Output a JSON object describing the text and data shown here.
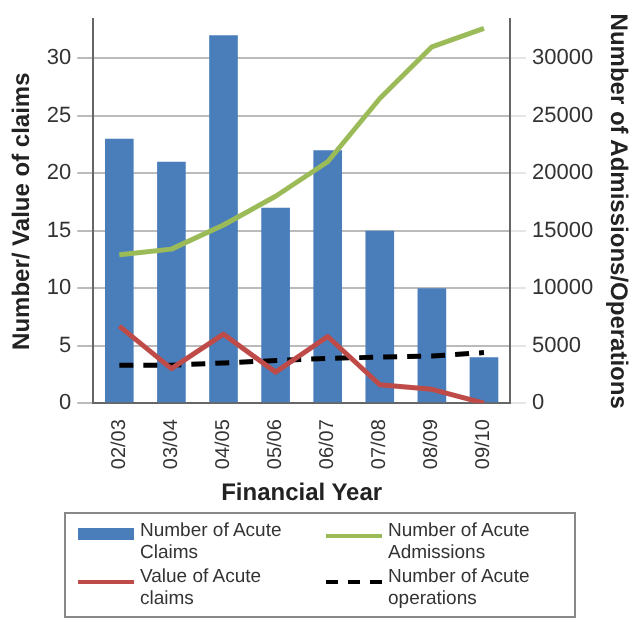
{
  "chart_data": {
    "type": "bar",
    "xlabel": "Financial Year",
    "ylabel": "Number/ Value of claims",
    "y2label": "Number of Admissions/Operations",
    "categories": [
      "02/03",
      "03/04",
      "04/05",
      "05/06",
      "06/07",
      "07/08",
      "08/09",
      "09/10"
    ],
    "series": [
      {
        "name": "Number of Acute Claims",
        "color": "#4a7ebb",
        "values": [
          23,
          21,
          32,
          17,
          22,
          15,
          10,
          4
        ]
      },
      {
        "name": "Number of Acute Admissions",
        "type": "line",
        "axis": "y2",
        "color": "#9bbb59",
        "values": [
          12900,
          13400,
          15500,
          18000,
          21000,
          26500,
          31000,
          32600
        ]
      },
      {
        "name": "Value of Acute claims",
        "type": "line",
        "color": "#be4b48",
        "values": [
          6.7,
          3.0,
          6.0,
          2.7,
          5.8,
          1.6,
          1.2,
          0
        ]
      },
      {
        "name": "Number of Acute operations",
        "type": "line",
        "axis": "y2",
        "line_style": "dashed",
        "color": "#000000",
        "values": [
          3300,
          3300,
          3500,
          3700,
          3900,
          4000,
          4100,
          4400
        ]
      }
    ],
    "ylim": [
      0,
      33.4
    ],
    "yticks": [
      0,
      5,
      10,
      15,
      20,
      25,
      30
    ],
    "y2lim": [
      0,
      33400
    ],
    "y2ticks": [
      0,
      5000,
      10000,
      15000,
      20000,
      25000,
      30000
    ],
    "grid": "y",
    "legend": "bottom",
    "marker": "none"
  }
}
